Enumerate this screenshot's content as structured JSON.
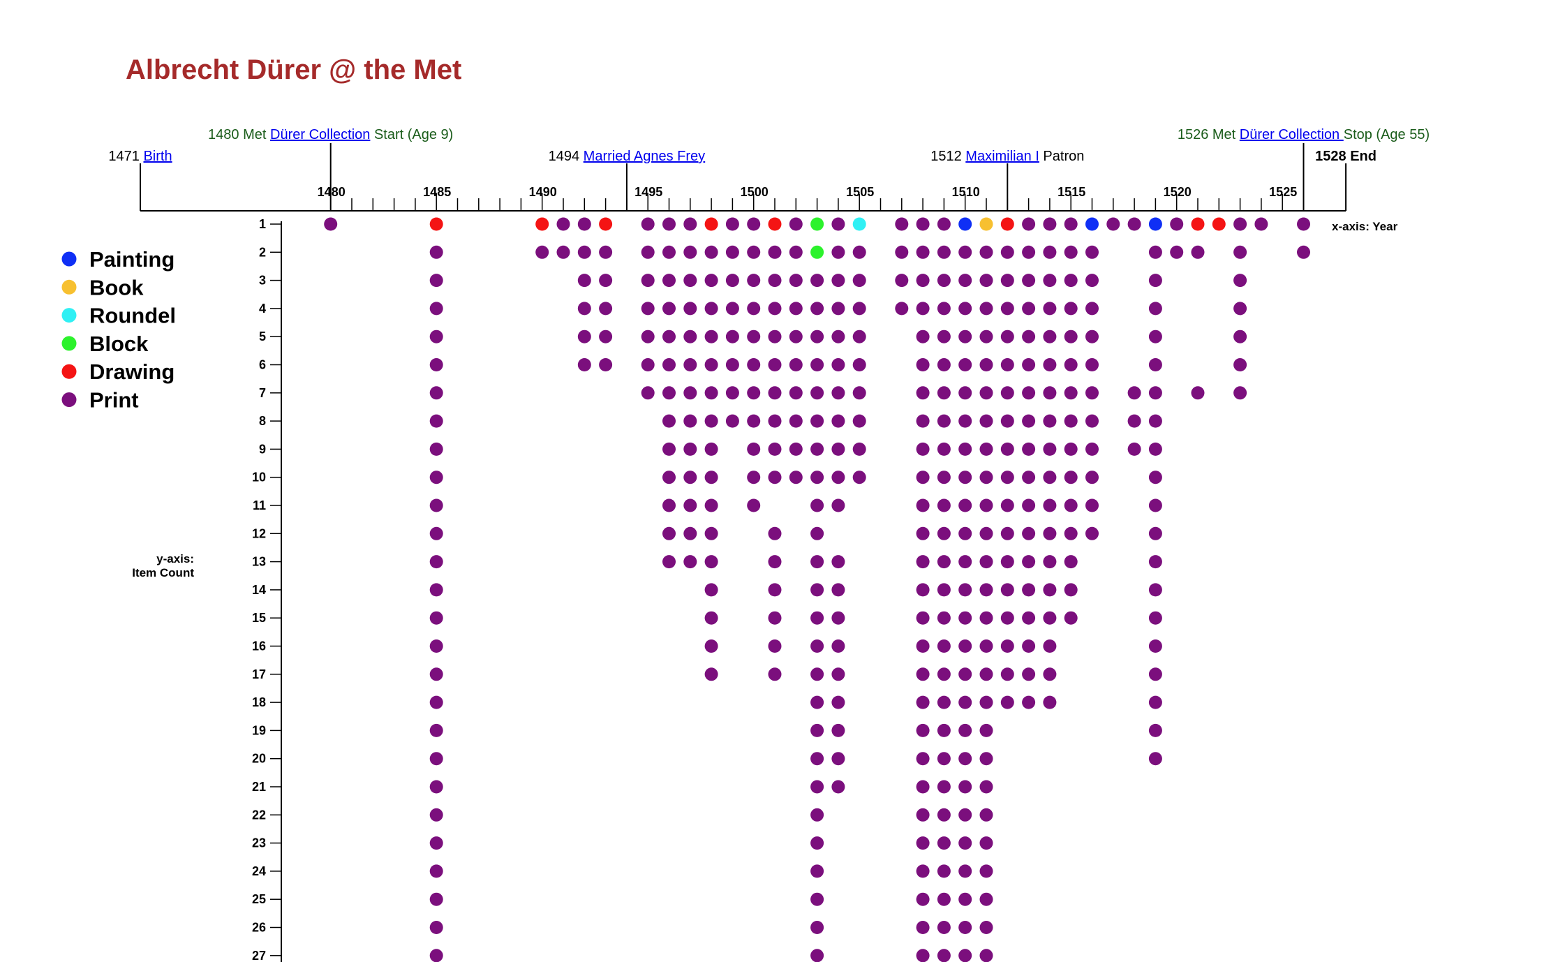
{
  "title": "Albrecht Dürer @ the Met",
  "events": [
    {
      "year": 1471,
      "pre": "1471 ",
      "link": "Birth",
      "post": "",
      "row": 2,
      "style": "black",
      "bold": false
    },
    {
      "year": 1480,
      "pre": "1480 Met ",
      "link": "Dürer Collection",
      "post": " Start (Age 9)",
      "row": 1,
      "style": "green",
      "bold": false
    },
    {
      "year": 1494,
      "pre": "1494 ",
      "link": "Married Agnes Frey",
      "post": "",
      "row": 2,
      "style": "black",
      "bold": false
    },
    {
      "year": 1512,
      "pre": "1512 ",
      "link": "Maximilian I",
      "post": " Patron",
      "row": 2,
      "style": "black",
      "bold": false
    },
    {
      "year": 1526,
      "pre": "1526 Met ",
      "link": "Dürer Collection ",
      "post": "Stop (Age 55)",
      "row": 1,
      "style": "green",
      "bold": false
    },
    {
      "year": 1528,
      "pre": "1528 End",
      "link": "",
      "post": "",
      "row": 2,
      "style": "black",
      "bold": true
    }
  ],
  "legend": [
    {
      "label": "Painting",
      "color": "#0f2ff5"
    },
    {
      "label": "Book",
      "color": "#f7c030"
    },
    {
      "label": "Roundel",
      "color": "#30f0f4"
    },
    {
      "label": "Block",
      "color": "#2cf22c"
    },
    {
      "label": "Drawing",
      "color": "#f41414"
    },
    {
      "label": "Print",
      "color": "#7b0f7d"
    }
  ],
  "x_axis_label": "x-axis: Year",
  "y_axis_label": [
    "y-axis:",
    "Item Count"
  ],
  "chart_data": {
    "type": "scatter",
    "title": "Albrecht Dürer @ the Met",
    "xlabel": "x-axis: Year",
    "ylabel": "y-axis: Item Count",
    "xlim": [
      1471,
      1528
    ],
    "x_ticks": [
      1480,
      1485,
      1490,
      1495,
      1500,
      1505,
      1510,
      1515,
      1520,
      1525
    ],
    "ylim": [
      1,
      27
    ],
    "y_ticks": [
      1,
      2,
      3,
      4,
      5,
      6,
      7,
      8,
      9,
      10,
      11,
      12,
      13,
      14,
      15,
      16,
      17,
      18,
      19,
      20,
      21,
      22,
      23,
      24,
      25,
      26,
      27
    ],
    "type_colors": {
      "Painting": "#0f2ff5",
      "Book": "#f7c030",
      "Roundel": "#30f0f4",
      "Block": "#2cf22c",
      "Drawing": "#f41414",
      "Print": "#7b0f7d"
    },
    "columns": [
      {
        "year": 1480,
        "count": 1,
        "top_type": "Print"
      },
      {
        "year": 1485,
        "count": 27,
        "top_type": "Drawing"
      },
      {
        "year": 1490,
        "count": 2,
        "top_type": "Drawing"
      },
      {
        "year": 1491,
        "count": 2,
        "top_type": "Print"
      },
      {
        "year": 1492,
        "count": 6,
        "top_type": "Print"
      },
      {
        "year": 1493,
        "count": 6,
        "top_type": "Drawing"
      },
      {
        "year": 1495,
        "count": 7,
        "top_type": "Print"
      },
      {
        "year": 1496,
        "count": 17,
        "top_type": "Print"
      },
      {
        "year": 1497,
        "count": 13,
        "top_type": "Print"
      },
      {
        "year": 1498,
        "count": 17,
        "top_type": "Drawing"
      },
      {
        "year": 1499,
        "count": 8,
        "top_type": "Print"
      },
      {
        "year": 1500,
        "count": 11,
        "top_type": "Print"
      },
      {
        "year": 1501,
        "count": 17,
        "top_type": "Drawing"
      },
      {
        "year": 1502,
        "count": 10,
        "top_type": "Print"
      },
      {
        "year": 1503,
        "count": 27,
        "top_type": "Block",
        "second_type": "Block"
      },
      {
        "year": 1504,
        "count": 21,
        "top_type": "Print"
      },
      {
        "year": 1505,
        "count": 10,
        "top_type": "Roundel"
      },
      {
        "year": 1507,
        "count": 4,
        "top_type": "Print"
      },
      {
        "year": 1508,
        "count": 27,
        "top_type": "Print"
      },
      {
        "year": 1509,
        "count": 27,
        "top_type": "Print"
      },
      {
        "year": 1510,
        "count": 27,
        "top_type": "Painting"
      },
      {
        "year": 1511,
        "count": 27,
        "top_type": "Book"
      },
      {
        "year": 1512,
        "count": 27,
        "top_type": "Drawing"
      },
      {
        "year": 1513,
        "count": 18,
        "top_type": "Print"
      },
      {
        "year": 1514,
        "count": 18,
        "top_type": "Print"
      },
      {
        "year": 1515,
        "count": 15,
        "top_type": "Print"
      },
      {
        "year": 1516,
        "count": 12,
        "top_type": "Painting"
      },
      {
        "year": 1517,
        "count": 1,
        "top_type": "Print"
      },
      {
        "year": 1518,
        "count": 9,
        "top_type": "Print"
      },
      {
        "year": 1519,
        "count": 20,
        "top_type": "Painting"
      },
      {
        "year": 1520,
        "count": 6,
        "top_type": "Print"
      },
      {
        "year": 1521,
        "count": 7,
        "top_type": "Drawing"
      },
      {
        "year": 1522,
        "count": 2,
        "top_type": "Drawing"
      },
      {
        "year": 1523,
        "count": 10,
        "top_type": "Print"
      },
      {
        "year": 1524,
        "count": 1,
        "top_type": "Print"
      },
      {
        "year": 1526,
        "count": 2,
        "top_type": "Print"
      }
    ],
    "gaps": [
      {
        "year": 1496,
        "rows": [
          14,
          15,
          16,
          17
        ]
      },
      {
        "year": 1497,
        "rows": [
          14,
          15,
          16,
          17
        ]
      },
      {
        "year": 1499,
        "rows": [
          9,
          10
        ]
      },
      {
        "year": 1501,
        "rows": [
          11
        ]
      },
      {
        "year": 1502,
        "rows": [
          11,
          12,
          13,
          14,
          15,
          16,
          17
        ]
      },
      {
        "year": 1500,
        "rows": [
          12,
          13,
          14,
          15,
          16,
          17
        ]
      },
      {
        "year": 1504,
        "rows": [
          12
        ]
      },
      {
        "year": 1513,
        "rows": [
          19
        ]
      },
      {
        "year": 1514,
        "rows": [
          19
        ]
      },
      {
        "year": 1518,
        "rows": [
          2,
          3,
          4,
          5,
          6
        ]
      },
      {
        "year": 1520,
        "rows": [
          3,
          4,
          5,
          6
        ]
      },
      {
        "year": 1521,
        "rows": [
          3,
          4,
          5,
          6
        ]
      },
      {
        "year": 1520,
        "rows": [
          7
        ]
      },
      {
        "year": 1521,
        "rows": []
      },
      {
        "year": 1522,
        "rows": [
          2
        ]
      },
      {
        "year": 1523,
        "rows": [
          8,
          9,
          10
        ]
      },
      {
        "year": 1504,
        "rows": [
          22,
          23,
          24,
          25,
          26,
          27
        ]
      },
      {
        "year": 1512,
        "rows": [
          19,
          20,
          21,
          22,
          23,
          24,
          25,
          26,
          27
        ]
      }
    ]
  }
}
